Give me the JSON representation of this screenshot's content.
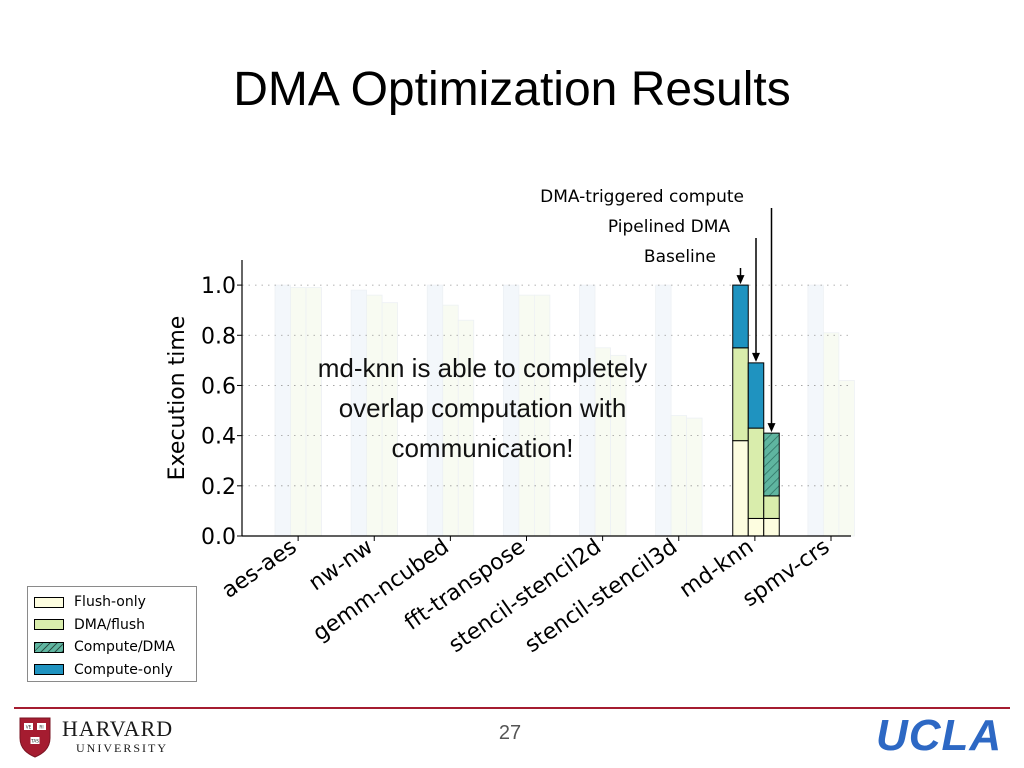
{
  "slide": {
    "title": "DMA Optimization Results",
    "note_lines": [
      "md-knn is able to completely",
      "overlap computation with",
      "communication!"
    ],
    "page_number": "27",
    "logos": {
      "left_name": "HARVARD",
      "left_sub": "UNIVERSITY",
      "shield_text": "VE RI TAS",
      "right": "UCLA"
    }
  },
  "chart_data": {
    "type": "bar",
    "stacked": true,
    "ylabel": "Execution time",
    "ylim": [
      0,
      1.1
    ],
    "yticks": [
      0.0,
      0.2,
      0.4,
      0.6,
      0.8,
      1.0
    ],
    "grid": true,
    "categories": [
      "aes-aes",
      "nw-nw",
      "gemm-ncubed",
      "fft-transpose",
      "stencil-stencil2d",
      "stencil-stencil3d",
      "md-knn",
      "spmv-crs"
    ],
    "bar_variants": [
      "Baseline",
      "Pipelined DMA",
      "DMA-triggered compute"
    ],
    "segments": [
      "Flush-only",
      "DMA/flush",
      "Compute/DMA",
      "Compute-only"
    ],
    "colors": {
      "Flush-only": "#fdfde0",
      "DMA/flush": "#d9edac",
      "Compute/DMA": "#5fb5a0",
      "Compute-only": "#1f93c0"
    },
    "highlighted": "md-knn",
    "highlighted_values": [
      {
        "variant": "Baseline",
        "Flush-only": 0.38,
        "DMA/flush": 0.37,
        "Compute/DMA": 0.0,
        "Compute-only": 0.25
      },
      {
        "variant": "Pipelined DMA",
        "Flush-only": 0.07,
        "DMA/flush": 0.36,
        "Compute/DMA": 0.0,
        "Compute-only": 0.26
      },
      {
        "variant": "DMA-triggered compute",
        "Flush-only": 0.07,
        "DMA/flush": 0.09,
        "Compute/DMA": 0.25,
        "Compute-only": 0.0
      }
    ],
    "faded_totals": {
      "aes-aes": [
        1.0,
        0.99,
        0.99
      ],
      "nw-nw": [
        0.98,
        0.96,
        0.93
      ],
      "gemm-ncubed": [
        1.0,
        0.92,
        0.86
      ],
      "fft-transpose": [
        1.0,
        0.96,
        0.96
      ],
      "stencil-stencil2d": [
        1.0,
        0.75,
        0.72
      ],
      "stencil-stencil3d": [
        1.0,
        0.48,
        0.47
      ],
      "spmv-crs": [
        1.0,
        0.81,
        0.62
      ]
    },
    "annotations": [
      "DMA-triggered compute",
      "Pipelined DMA",
      "Baseline"
    ],
    "legend": [
      "Flush-only",
      "DMA/flush",
      "Compute/DMA",
      "Compute-only"
    ]
  }
}
